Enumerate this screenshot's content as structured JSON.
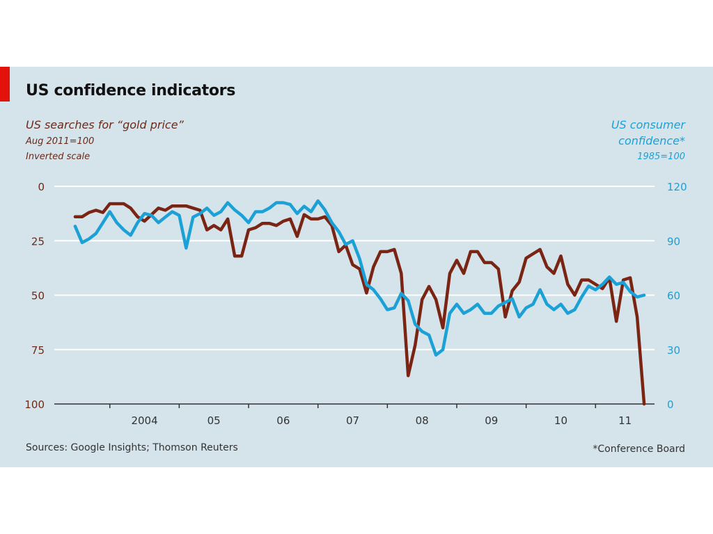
{
  "header": {
    "title": "US confidence indicators",
    "left_note_1": "US searches for “gold price”",
    "left_note_2": "Aug 2011=100",
    "left_note_3": "Inverted scale",
    "right_note_1": "US consumer",
    "right_note_2": "confidence*",
    "right_note_3": "1985=100"
  },
  "footer": {
    "sources": "Sources: Google Insights; Thomson Reuters",
    "note": "*Conference Board"
  },
  "colors": {
    "background": "#d5e3ea",
    "accent": "#e3120b",
    "gold_series": "#7a2413",
    "confidence_series": "#1ba1d6",
    "grid": "#ffffff",
    "left_axis_text": "#6b2a1a",
    "right_axis_text": "#1ba1d6"
  },
  "chart_data": {
    "type": "line",
    "title": "US confidence indicators",
    "grid": true,
    "x_ticks": [
      2004,
      2005,
      2006,
      2007,
      2008,
      2009,
      2010,
      2011,
      2012
    ],
    "x_tick_labels": [
      "2004",
      "05",
      "06",
      "07",
      "08",
      "09",
      "10",
      "11"
    ],
    "y_left": {
      "ticks": [
        0,
        25,
        50,
        75,
        100
      ],
      "labels": [
        "0",
        "25",
        "50",
        "75",
        "100"
      ],
      "inverted": true,
      "range": [
        0,
        100
      ]
    },
    "y_right": {
      "ticks": [
        0,
        30,
        60,
        90,
        120
      ],
      "labels": [
        "0",
        "30",
        "60",
        "90",
        "120"
      ],
      "range": [
        0,
        120
      ]
    },
    "xlim": [
      2003.2,
      2011.85
    ],
    "series": [
      {
        "name": "US searches for “gold price”",
        "axis": "left",
        "color": "#7a2413",
        "x": [
          2003.5,
          2003.6,
          2003.7,
          2003.8,
          2003.9,
          2004.0,
          2004.1,
          2004.2,
          2004.3,
          2004.4,
          2004.5,
          2004.6,
          2004.7,
          2004.8,
          2004.9,
          2005.0,
          2005.1,
          2005.2,
          2005.3,
          2005.4,
          2005.5,
          2005.6,
          2005.7,
          2005.8,
          2005.9,
          2006.0,
          2006.1,
          2006.2,
          2006.3,
          2006.4,
          2006.5,
          2006.6,
          2006.7,
          2006.8,
          2006.9,
          2007.0,
          2007.1,
          2007.2,
          2007.3,
          2007.4,
          2007.5,
          2007.6,
          2007.7,
          2007.8,
          2007.9,
          2008.0,
          2008.1,
          2008.2,
          2008.3,
          2008.4,
          2008.5,
          2008.6,
          2008.7,
          2008.8,
          2008.9,
          2009.0,
          2009.1,
          2009.2,
          2009.3,
          2009.4,
          2009.5,
          2009.6,
          2009.7,
          2009.8,
          2009.9,
          2010.0,
          2010.1,
          2010.2,
          2010.3,
          2010.4,
          2010.5,
          2010.6,
          2010.7,
          2010.8,
          2010.9,
          2011.0,
          2011.1,
          2011.2,
          2011.3,
          2011.4,
          2011.5,
          2011.6,
          2011.7
        ],
        "values": [
          14,
          14,
          12,
          11,
          12,
          8,
          8,
          8,
          10,
          14,
          16,
          13,
          10,
          11,
          9,
          9,
          9,
          10,
          11,
          20,
          18,
          20,
          15,
          32,
          32,
          20,
          19,
          17,
          17,
          18,
          16,
          15,
          23,
          13,
          15,
          15,
          14,
          18,
          30,
          27,
          36,
          38,
          49,
          37,
          30,
          30,
          29,
          40,
          87,
          73,
          52,
          46,
          52,
          65,
          40,
          34,
          40,
          30,
          30,
          35,
          35,
          38,
          60,
          48,
          44,
          33,
          31,
          29,
          37,
          40,
          32,
          45,
          50,
          43,
          43,
          45,
          47,
          42,
          62,
          43,
          42,
          60,
          100
        ]
      },
      {
        "name": "US consumer confidence*",
        "axis": "right",
        "color": "#1ba1d6",
        "x": [
          2003.5,
          2003.6,
          2003.7,
          2003.8,
          2003.9,
          2004.0,
          2004.1,
          2004.2,
          2004.3,
          2004.4,
          2004.5,
          2004.6,
          2004.7,
          2004.8,
          2004.9,
          2005.0,
          2005.1,
          2005.2,
          2005.3,
          2005.4,
          2005.5,
          2005.6,
          2005.7,
          2005.8,
          2005.9,
          2006.0,
          2006.1,
          2006.2,
          2006.3,
          2006.4,
          2006.5,
          2006.6,
          2006.7,
          2006.8,
          2006.9,
          2007.0,
          2007.1,
          2007.2,
          2007.3,
          2007.4,
          2007.5,
          2007.6,
          2007.7,
          2007.8,
          2007.9,
          2008.0,
          2008.1,
          2008.2,
          2008.3,
          2008.4,
          2008.5,
          2008.6,
          2008.7,
          2008.8,
          2008.9,
          2009.0,
          2009.1,
          2009.2,
          2009.3,
          2009.4,
          2009.5,
          2009.6,
          2009.7,
          2009.8,
          2009.9,
          2010.0,
          2010.1,
          2010.2,
          2010.3,
          2010.4,
          2010.5,
          2010.6,
          2010.7,
          2010.8,
          2010.9,
          2011.0,
          2011.1,
          2011.2,
          2011.3,
          2011.4,
          2011.5,
          2011.6,
          2011.7
        ],
        "values": [
          98,
          89,
          91,
          94,
          100,
          106,
          100,
          96,
          93,
          100,
          105,
          104,
          100,
          103,
          106,
          104,
          86,
          103,
          105,
          108,
          104,
          106,
          111,
          107,
          104,
          100,
          106,
          106,
          108,
          111,
          111,
          110,
          105,
          109,
          106,
          112,
          107,
          100,
          95,
          88,
          90,
          80,
          66,
          63,
          58,
          52,
          53,
          61,
          57,
          44,
          40,
          38,
          27,
          30,
          50,
          55,
          50,
          52,
          55,
          50,
          50,
          54,
          56,
          58,
          48,
          53,
          55,
          63,
          55,
          52,
          55,
          50,
          52,
          59,
          65,
          63,
          66,
          70,
          66,
          67,
          62,
          59,
          60
        ]
      }
    ]
  }
}
